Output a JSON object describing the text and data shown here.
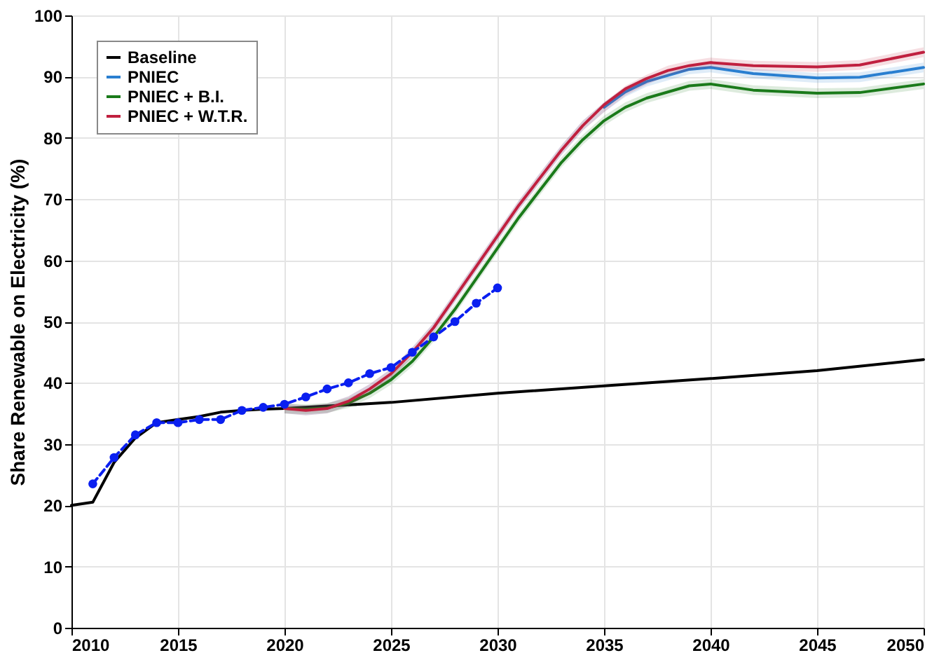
{
  "chart_data": {
    "type": "line",
    "ylabel": "Share Renewable on Electricity (%)",
    "xlim": [
      2010,
      2050
    ],
    "xticks": [
      2010,
      2015,
      2020,
      2025,
      2030,
      2035,
      2040,
      2045,
      2050
    ],
    "ylim": [
      0,
      100
    ],
    "yticks": [
      0,
      10,
      20,
      30,
      40,
      50,
      60,
      70,
      80,
      90,
      100
    ],
    "grid": true,
    "legend": "top left",
    "series": [
      {
        "name": "Baseline",
        "color": "#000000",
        "line_style": "solid",
        "x": [
          2010,
          2011,
          2012,
          2013,
          2014,
          2015,
          2016,
          2017,
          2018,
          2019,
          2020,
          2022,
          2025,
          2030,
          2035,
          2040,
          2045,
          2050
        ],
        "values": [
          20,
          20.5,
          27,
          31,
          33.5,
          34,
          34.5,
          35.2,
          35.5,
          35.7,
          35.8,
          36.2,
          36.8,
          38.3,
          39.5,
          40.7,
          42,
          43.8
        ]
      },
      {
        "name": "PNIEC",
        "color": "#2a7fd0",
        "line_style": "solid",
        "x": [
          2020,
          2021,
          2022,
          2023,
          2024,
          2025,
          2026,
          2027,
          2028,
          2029,
          2030,
          2031,
          2032,
          2033,
          2034,
          2035,
          2036,
          2037,
          2038,
          2039,
          2040,
          2042,
          2045,
          2047,
          2050
        ],
        "values": [
          null,
          null,
          null,
          null,
          null,
          null,
          null,
          null,
          null,
          null,
          null,
          null,
          null,
          null,
          null,
          85,
          87.5,
          89.2,
          90.2,
          91.2,
          91.5,
          90.5,
          89.8,
          89.9,
          91.5
        ],
        "lower": [
          35,
          34.7,
          35,
          36.2,
          38.2,
          40.7,
          44.2,
          48.2,
          53.2,
          58.2,
          63.2,
          68.2,
          72.7,
          77.2,
          81.2,
          84.2,
          86.7,
          88.4,
          89.4,
          90.4,
          90.7,
          89.7,
          89,
          89.1,
          90.7
        ],
        "upper": [
          36.6,
          36.3,
          36.6,
          37.8,
          39.8,
          42.3,
          45.8,
          49.8,
          54.8,
          59.8,
          64.8,
          69.8,
          74.3,
          78.8,
          82.8,
          85.8,
          88.3,
          90,
          91,
          92,
          92.3,
          91.3,
          90.6,
          90.7,
          92.3
        ]
      },
      {
        "name": "PNIEC + B.I.",
        "color": "#1a7a1a",
        "line_style": "solid",
        "x": [
          2020,
          2021,
          2022,
          2023,
          2024,
          2025,
          2026,
          2027,
          2028,
          2029,
          2030,
          2031,
          2032,
          2033,
          2034,
          2035,
          2036,
          2037,
          2038,
          2039,
          2040,
          2042,
          2045,
          2047,
          2050
        ],
        "values": [
          35.8,
          35.7,
          35.9,
          36.7,
          38.3,
          40.5,
          43.5,
          47.5,
          52,
          57,
          62,
          67,
          71.5,
          76,
          79.7,
          82.8,
          85,
          86.5,
          87.5,
          88.5,
          88.8,
          87.8,
          87.3,
          87.4,
          88.8
        ],
        "lower": [
          35,
          34.9,
          35.1,
          35.9,
          37.5,
          39.7,
          42.7,
          46.7,
          51.2,
          56.2,
          61.2,
          66.2,
          70.7,
          75.2,
          78.9,
          82,
          84.2,
          85.7,
          86.7,
          87.7,
          88,
          87,
          86.5,
          86.6,
          88
        ],
        "upper": [
          36.6,
          36.5,
          36.7,
          37.5,
          39.1,
          41.3,
          44.3,
          48.3,
          52.8,
          57.8,
          62.8,
          67.8,
          72.3,
          76.8,
          80.5,
          83.6,
          85.8,
          87.3,
          88.3,
          89.3,
          89.6,
          88.6,
          88.1,
          88.2,
          89.6
        ]
      },
      {
        "name": "PNIEC + W.T.R.",
        "color": "#c0203f",
        "line_style": "solid",
        "x": [
          2020,
          2021,
          2022,
          2023,
          2024,
          2025,
          2026,
          2027,
          2028,
          2029,
          2030,
          2031,
          2032,
          2033,
          2034,
          2035,
          2036,
          2037,
          2038,
          2039,
          2040,
          2042,
          2045,
          2047,
          2050
        ],
        "values": [
          35.8,
          35.5,
          35.8,
          37,
          39,
          41.5,
          45,
          49,
          54,
          59,
          64,
          69,
          73.5,
          78,
          82,
          85.4,
          88,
          89.7,
          91,
          91.8,
          92.3,
          91.8,
          91.6,
          91.9,
          94
        ],
        "lower": [
          35,
          34.7,
          35,
          36.2,
          38.2,
          40.7,
          44.2,
          48.2,
          53.2,
          58.2,
          63.2,
          68.2,
          72.7,
          77.2,
          81.2,
          84.2,
          86.9,
          88.7,
          90.2,
          91,
          91.5,
          91,
          90.8,
          91.1,
          93.2
        ],
        "upper": [
          36.6,
          36.3,
          36.6,
          37.8,
          39.8,
          42.3,
          45.8,
          49.8,
          54.8,
          59.8,
          64.8,
          69.8,
          74.3,
          78.8,
          82.8,
          85.8,
          88.5,
          90.3,
          91.8,
          92.6,
          93.1,
          92.6,
          92.4,
          92.7,
          94.8
        ]
      },
      {
        "color": "#0a1ff0",
        "line_style": "dashed",
        "marker": "circle",
        "x": [
          2011,
          2012,
          2013,
          2014,
          2015,
          2016,
          2017,
          2018,
          2019,
          2020,
          2021,
          2022,
          2023,
          2024,
          2025,
          2026,
          2027,
          2028,
          2029,
          2030
        ],
        "values": [
          23.5,
          27.8,
          31.5,
          33.5,
          33.5,
          34,
          34,
          35.5,
          36,
          36.5,
          37.7,
          39,
          40,
          41.5,
          42.5,
          45,
          47.5,
          50,
          53,
          55.5
        ]
      }
    ]
  }
}
